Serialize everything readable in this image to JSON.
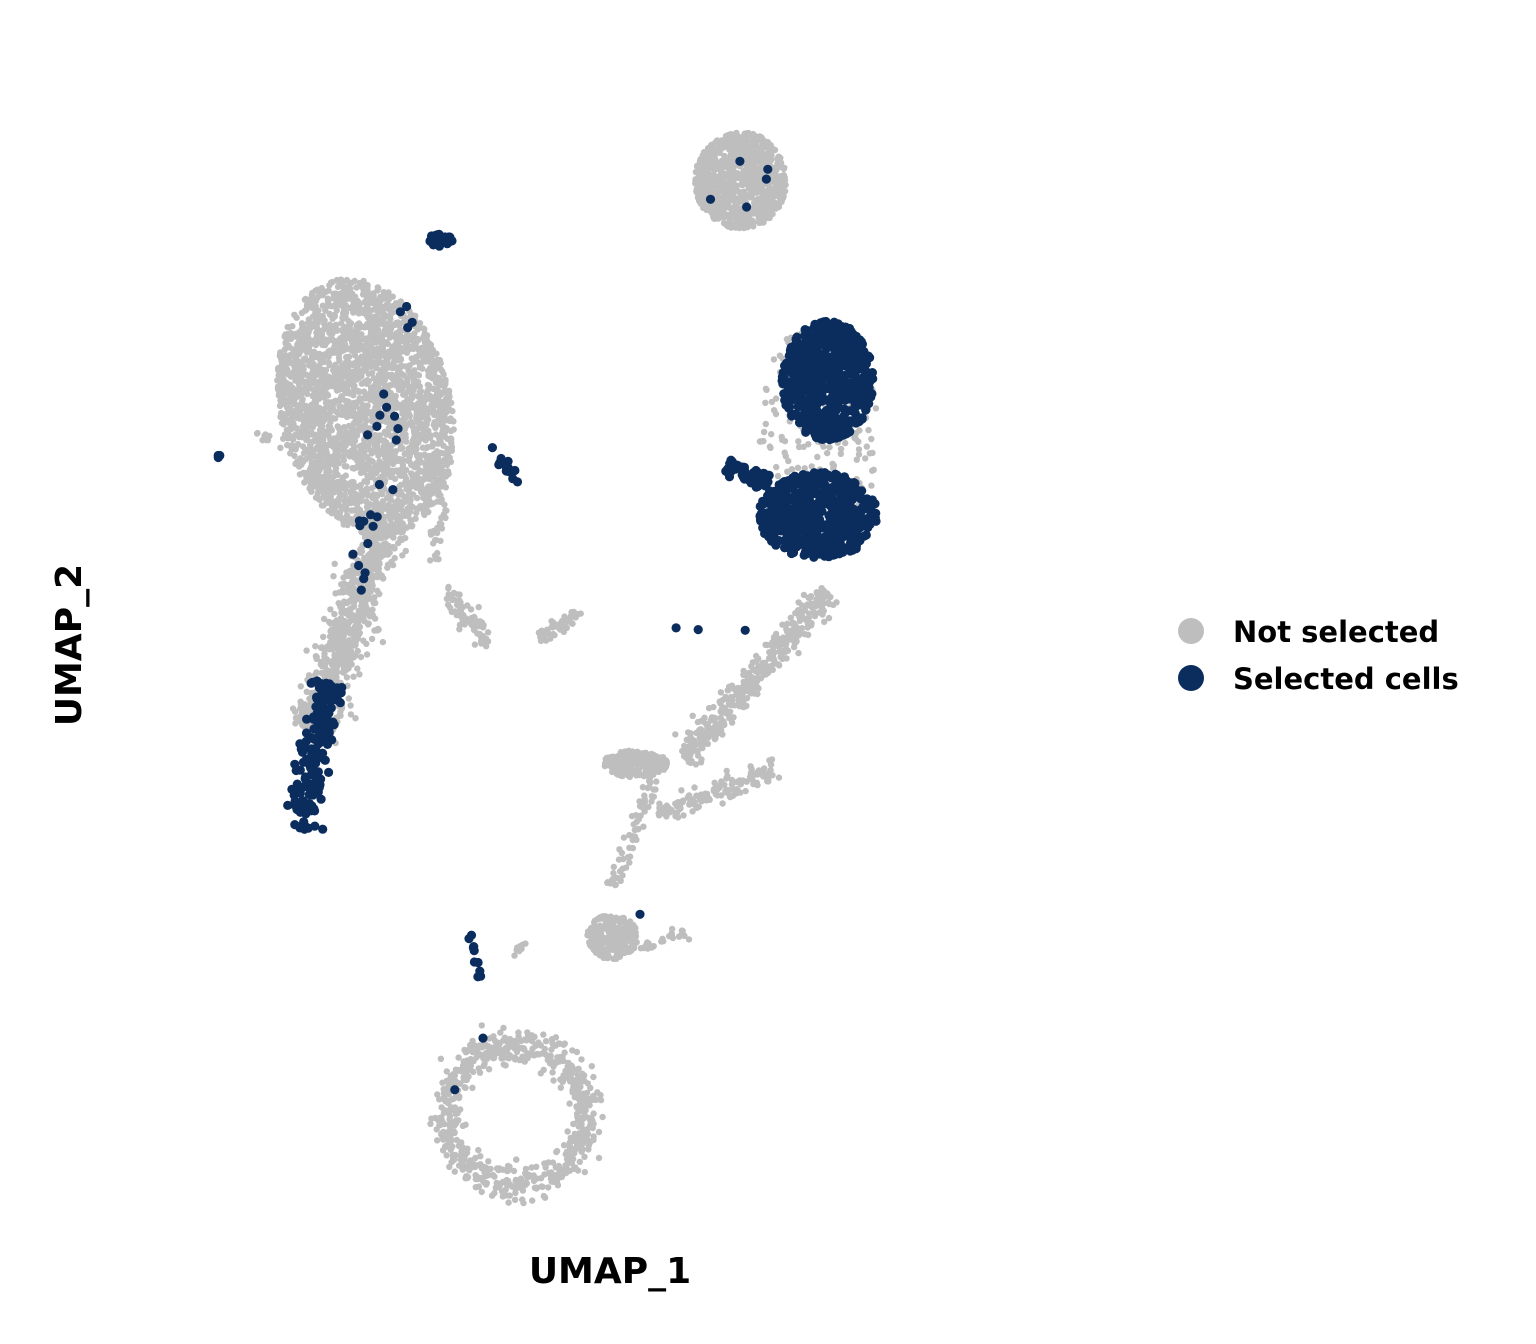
{
  "chart_data": {
    "type": "scatter",
    "title": "",
    "xlabel": "UMAP_1",
    "ylabel": "UMAP_2",
    "grid": false,
    "legend_position": "right",
    "xlim": [
      -10,
      10
    ],
    "ylim": [
      -10,
      10
    ],
    "colors": {
      "not_selected": "#BEBEBE",
      "selected": "#0B2D5E"
    },
    "legend": [
      {
        "key": "not_selected",
        "label": "Not selected"
      },
      {
        "key": "selected",
        "label": "Selected cells"
      }
    ],
    "clusters": [
      {
        "name": "left-upper-body",
        "series": "not_selected",
        "count": 2600,
        "shape": "ellipse",
        "cx": -5.4,
        "cy": 4.4,
        "rx": 1.85,
        "ry": 2.45,
        "rot": 0.35
      },
      {
        "name": "left-lower-arm",
        "series": "not_selected",
        "count": 700,
        "shape": "segment",
        "x1": -5.0,
        "y1": 2.2,
        "x2": -6.6,
        "y2": -1.6,
        "w": 0.5
      },
      {
        "name": "left-lower-arm-selected",
        "series": "selected",
        "count": 170,
        "shape": "segment",
        "x1": -6.2,
        "y1": -0.7,
        "x2": -6.8,
        "y2": -3.4,
        "w": 0.38
      },
      {
        "name": "left-upper-tip-selected",
        "series": "selected",
        "count": 30,
        "shape": "ellipse",
        "cx": -3.8,
        "cy": 7.5,
        "rx": 0.3,
        "ry": 0.12,
        "rot": 0
      },
      {
        "name": "left-scattered-selected",
        "series": "selected",
        "count": 26,
        "shape": "segment",
        "x1": -4.5,
        "y1": 6.4,
        "x2": -5.5,
        "y2": 1.0,
        "w": 0.35
      },
      {
        "name": "left-stray-points",
        "series": "not_selected",
        "count": 12,
        "shape": "segment",
        "x1": -7.8,
        "y1": 3.9,
        "x2": -7.0,
        "y2": 3.7,
        "w": 0.1
      },
      {
        "name": "left-stray-selected",
        "series": "selected",
        "count": 3,
        "shape": "ellipse",
        "cx": -8.6,
        "cy": 3.5,
        "rx": 0.05,
        "ry": 0.03,
        "rot": 0
      },
      {
        "name": "center-small-grey",
        "series": "not_selected",
        "count": 70,
        "shape": "segment",
        "x1": -3.7,
        "y1": 1.0,
        "x2": -2.7,
        "y2": 0.0,
        "w": 0.22
      },
      {
        "name": "center-trail-grey",
        "series": "not_selected",
        "count": 35,
        "shape": "segment",
        "x1": -3.6,
        "y1": 3.3,
        "x2": -3.9,
        "y2": 1.5,
        "w": 0.15
      },
      {
        "name": "center-right-grey",
        "series": "not_selected",
        "count": 45,
        "shape": "segment",
        "x1": -1.6,
        "y1": 0.1,
        "x2": -0.7,
        "y2": 0.6,
        "w": 0.14
      },
      {
        "name": "center-selected-hook",
        "series": "selected",
        "count": 18,
        "shape": "segment",
        "x1": -2.7,
        "y1": 3.7,
        "x2": -2.1,
        "y2": 3.0,
        "w": 0.12
      },
      {
        "name": "right-top-grey",
        "series": "not_selected",
        "count": 900,
        "shape": "ellipse",
        "cx": 2.8,
        "cy": 8.6,
        "rx": 1.0,
        "ry": 0.9,
        "rot": 0
      },
      {
        "name": "right-top-selected",
        "series": "selected",
        "count": 5,
        "shape": "ellipse",
        "cx": 2.6,
        "cy": 8.4,
        "rx": 1.0,
        "ry": 0.7,
        "rot": 0
      },
      {
        "name": "right-mid-grey",
        "series": "not_selected",
        "count": 220,
        "shape": "ellipse",
        "cx": 4.5,
        "cy": 3.9,
        "rx": 1.3,
        "ry": 2.1,
        "rot": 0
      },
      {
        "name": "right-mid-selected-top",
        "series": "selected",
        "count": 640,
        "shape": "ellipse",
        "cx": 4.7,
        "cy": 4.9,
        "rx": 1.0,
        "ry": 1.1,
        "rot": 0
      },
      {
        "name": "right-mid-selected-bottom",
        "series": "selected",
        "count": 560,
        "shape": "ellipse",
        "cx": 4.5,
        "cy": 2.4,
        "rx": 1.3,
        "ry": 0.8,
        "rot": 0
      },
      {
        "name": "right-mid-selected-arm",
        "series": "selected",
        "count": 60,
        "shape": "segment",
        "x1": 2.5,
        "y1": 3.3,
        "x2": 3.4,
        "y2": 3.0,
        "w": 0.2
      },
      {
        "name": "right-diagonal-grey",
        "series": "not_selected",
        "count": 380,
        "shape": "segment",
        "x1": 4.7,
        "y1": 1.0,
        "x2": 1.6,
        "y2": -2.1,
        "w": 0.3
      },
      {
        "name": "right-lower-blob",
        "series": "not_selected",
        "count": 260,
        "shape": "ellipse",
        "cx": 0.5,
        "cy": -2.2,
        "rx": 0.7,
        "ry": 0.25,
        "rot": 0
      },
      {
        "name": "right-branch-grey",
        "series": "not_selected",
        "count": 140,
        "shape": "segment",
        "x1": 1.0,
        "y1": -3.1,
        "x2": 3.6,
        "y2": -2.3,
        "w": 0.2
      },
      {
        "name": "right-stem-grey",
        "series": "not_selected",
        "count": 70,
        "shape": "segment",
        "x1": 0.9,
        "y1": -2.5,
        "x2": 0.0,
        "y2": -4.5,
        "w": 0.15
      },
      {
        "name": "right-bottom-blob",
        "series": "not_selected",
        "count": 260,
        "shape": "ellipse",
        "cx": 0.0,
        "cy": -5.4,
        "rx": 0.55,
        "ry": 0.42,
        "rot": 0
      },
      {
        "name": "right-bottom-tail",
        "series": "not_selected",
        "count": 25,
        "shape": "segment",
        "x1": 0.6,
        "y1": -5.6,
        "x2": 1.7,
        "y2": -5.3,
        "w": 0.1
      },
      {
        "name": "right-bottom-selected",
        "series": "selected",
        "count": 1,
        "shape": "ellipse",
        "cx": 0.6,
        "cy": -5.0,
        "rx": 0.02,
        "ry": 0.02,
        "rot": 0
      },
      {
        "name": "right-stray-selected",
        "series": "selected",
        "count": 3,
        "shape": "segment",
        "x1": 0.7,
        "y1": 0.3,
        "x2": 3.5,
        "y2": 0.3,
        "w": 0.05
      },
      {
        "name": "center-low-selected",
        "series": "selected",
        "count": 10,
        "shape": "segment",
        "x1": -3.2,
        "y1": -5.1,
        "x2": -2.9,
        "y2": -6.2,
        "w": 0.08
      },
      {
        "name": "center-low-grey",
        "series": "not_selected",
        "count": 8,
        "shape": "segment",
        "x1": -2.2,
        "y1": -5.8,
        "x2": -1.9,
        "y2": -5.5,
        "w": 0.06
      },
      {
        "name": "bottom-ring",
        "series": "not_selected",
        "count": 650,
        "shape": "ring",
        "cx": -2.1,
        "cy": -8.7,
        "rx": 1.55,
        "ry": 1.3,
        "w": 0.16
      },
      {
        "name": "bottom-ring-selected",
        "series": "selected",
        "count": 2,
        "shape": "segment",
        "x1": -3.5,
        "y1": -8.3,
        "x2": -2.5,
        "y2": -6.8,
        "w": 0.05
      }
    ]
  }
}
